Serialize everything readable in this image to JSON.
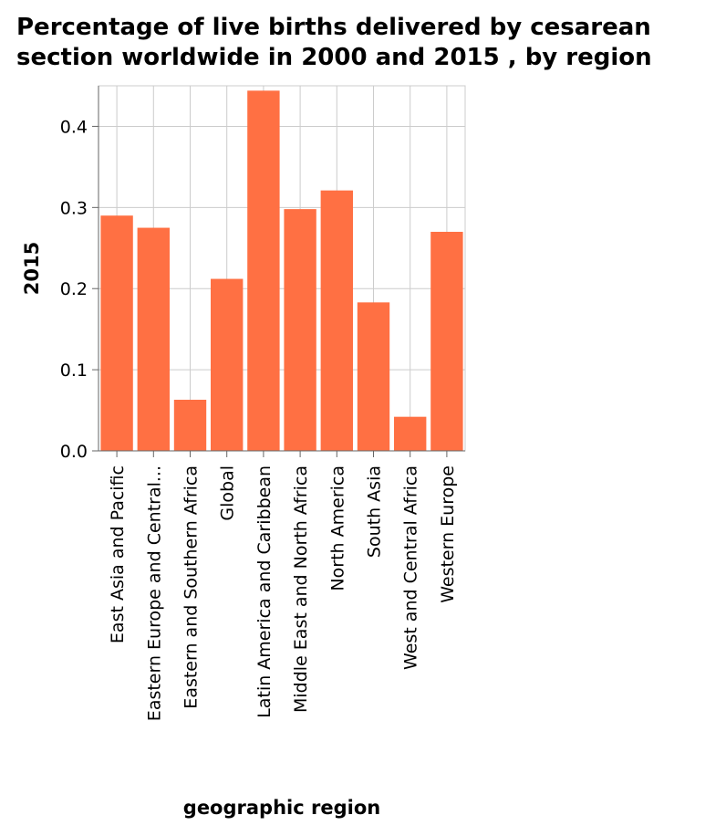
{
  "chart_data": {
    "type": "bar",
    "title": "Percentage of live births delivered by cesarean section worldwide in 2000 and 2015 , by region",
    "title_lines": [
      "Percentage of live births delivered by cesarean",
      "section worldwide in 2000 and 2015 , by region"
    ],
    "xlabel": "geographic region",
    "ylabel": "2015",
    "categories": [
      "East Asia and Pacific",
      "Eastern Europe and Central...",
      "Eastern and Southern Africa",
      "Global",
      "Latin America and Caribbean",
      "Middle East and North Africa",
      "North America",
      "South Asia",
      "West and Central Africa",
      "Western Europe"
    ],
    "values": [
      0.29,
      0.275,
      0.063,
      0.212,
      0.444,
      0.298,
      0.321,
      0.183,
      0.042,
      0.27
    ],
    "ylim": [
      0,
      0.45
    ],
    "yticks": [
      0.0,
      0.1,
      0.2,
      0.3,
      0.4
    ],
    "ytick_labels": [
      "0.0",
      "0.1",
      "0.2",
      "0.3",
      "0.4"
    ],
    "grid": true,
    "bar_color": "#ff7043",
    "grid_color": "#cccccc"
  }
}
